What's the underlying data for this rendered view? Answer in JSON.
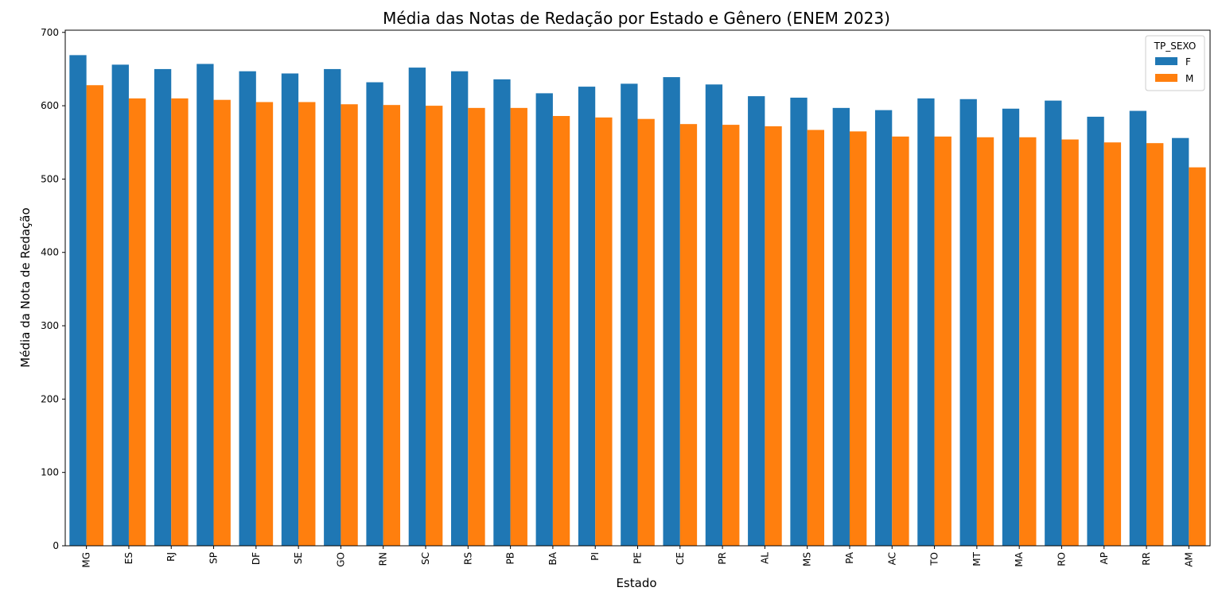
{
  "chart_data": {
    "type": "bar",
    "title": "Média das Notas de Redação por Estado e Gênero (ENEM 2023)",
    "xlabel": "Estado",
    "ylabel": "Média da Nota de Redação",
    "ylim": [
      0,
      703
    ],
    "yticks": [
      0,
      100,
      200,
      300,
      400,
      500,
      600,
      700
    ],
    "grid": false,
    "legend_title": "TP_SEXO",
    "legend_position": "top-right",
    "categories": [
      "MG",
      "ES",
      "RJ",
      "SP",
      "DF",
      "SE",
      "GO",
      "RN",
      "SC",
      "RS",
      "PB",
      "BA",
      "PI",
      "PE",
      "CE",
      "PR",
      "AL",
      "MS",
      "PA",
      "AC",
      "TO",
      "MT",
      "MA",
      "RO",
      "AP",
      "RR",
      "AM"
    ],
    "series": [
      {
        "name": "F",
        "color": "#1f77b4",
        "values": [
          669,
          656,
          650,
          657,
          647,
          644,
          650,
          632,
          652,
          647,
          636,
          617,
          626,
          630,
          639,
          629,
          613,
          611,
          597,
          594,
          610,
          609,
          596,
          607,
          585,
          593,
          556
        ]
      },
      {
        "name": "M",
        "color": "#ff7f0e",
        "values": [
          628,
          610,
          610,
          608,
          605,
          605,
          602,
          601,
          600,
          597,
          597,
          586,
          584,
          582,
          575,
          574,
          572,
          567,
          565,
          558,
          558,
          557,
          557,
          554,
          550,
          549,
          516
        ]
      }
    ]
  }
}
